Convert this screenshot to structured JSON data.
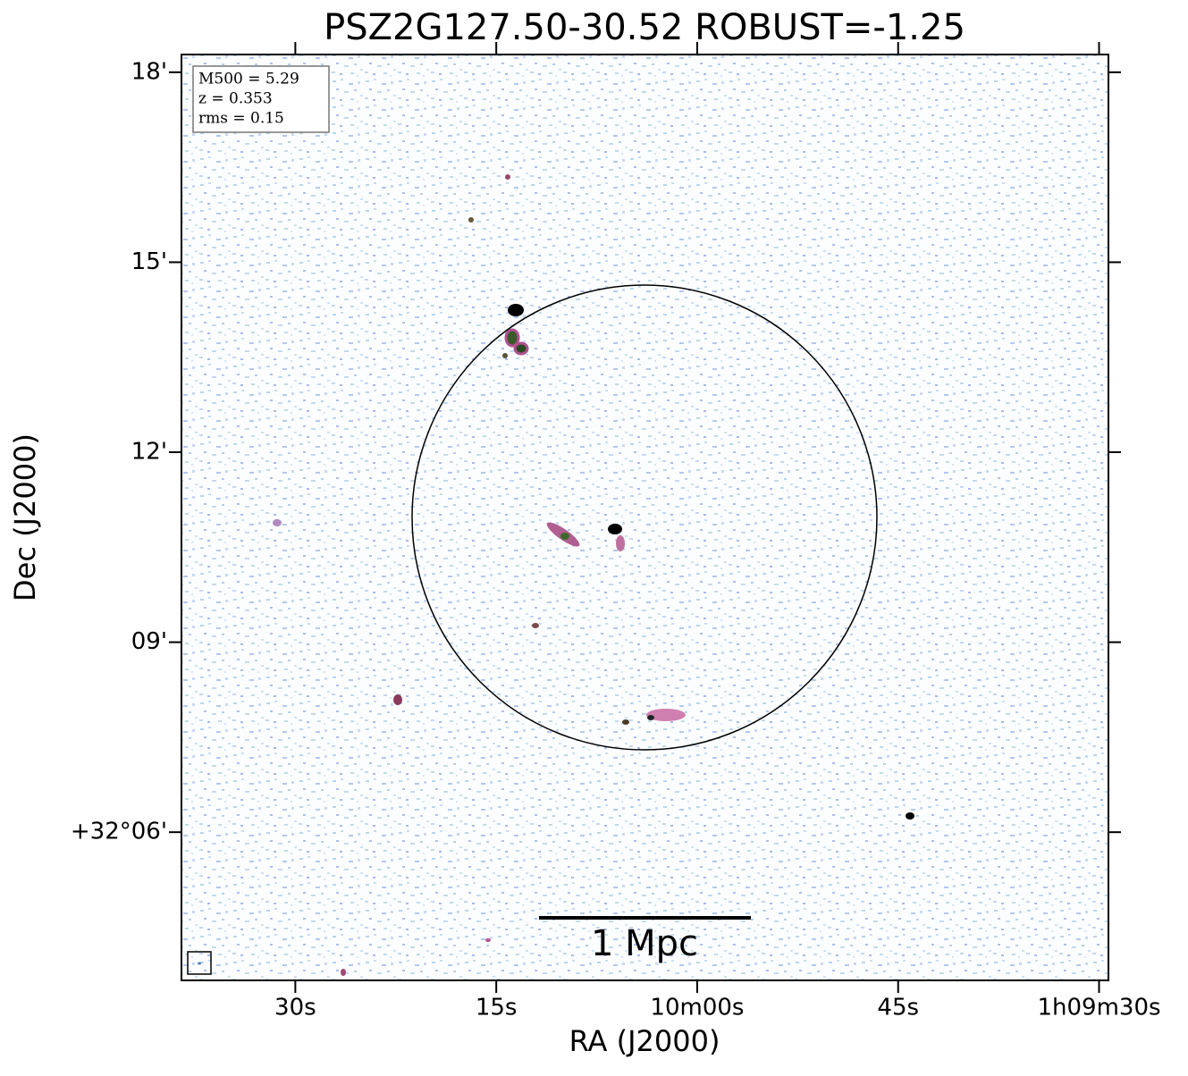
{
  "chart_data": {
    "type": "image",
    "title": "PSZ2G127.50-30.52 ROBUST=-1.25",
    "x_label": "RA (J2000)",
    "y_label": "Dec (J2000)",
    "xlim": [
      638.5,
      569.3
    ],
    "xticks": [
      {
        "value": 630,
        "label": "30s"
      },
      {
        "value": 615,
        "label": "15s"
      },
      {
        "value": 600,
        "label": "10m00s"
      },
      {
        "value": 585,
        "label": "45s"
      },
      {
        "value": 570,
        "label": "1h09m30s"
      }
    ],
    "ylim": [
      3.66,
      18.28
    ],
    "yticks": [
      {
        "value": 18,
        "label": "18'"
      },
      {
        "value": 15,
        "label": "15'"
      },
      {
        "value": 12,
        "label": "12'"
      },
      {
        "value": 9,
        "label": "09'"
      },
      {
        "value": 6,
        "label": "+32°06'"
      }
    ],
    "annotations": [
      "M500 = 5.29",
      "z = 0.353",
      "rms = 0.15"
    ],
    "scale_bar_label": "1 Mpc"
  }
}
